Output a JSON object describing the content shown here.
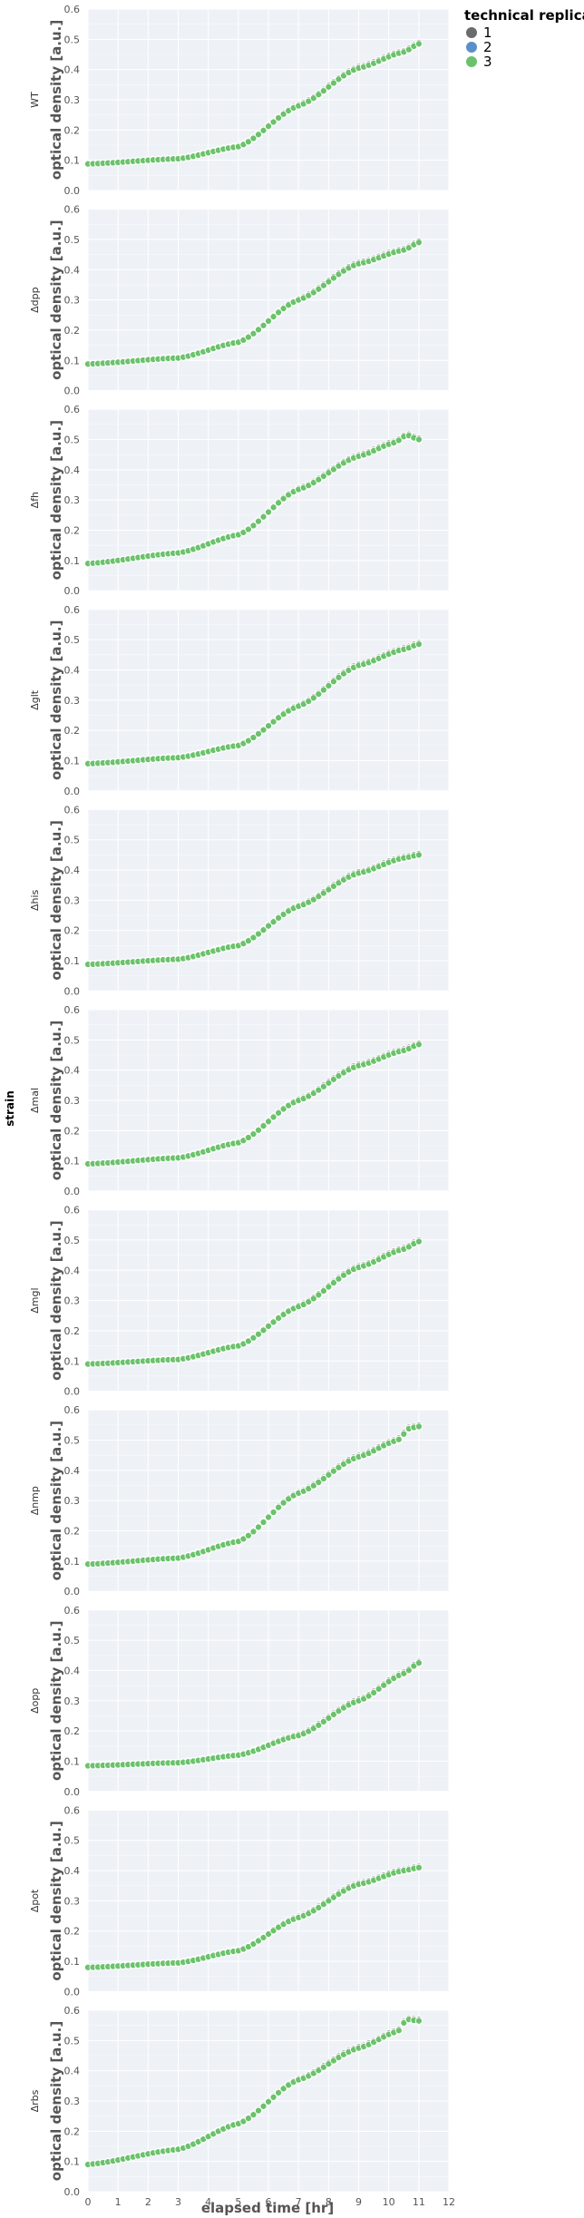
{
  "chart_data": {
    "type": "scatter",
    "xlabel": "elapsed time [hr]",
    "ylabel": "optical density [a.u.]",
    "facet_title": "strain",
    "xlim": [
      0,
      12
    ],
    "ylim": [
      0,
      0.6
    ],
    "xticks": [
      0,
      1,
      2,
      3,
      4,
      5,
      6,
      7,
      8,
      9,
      10,
      11,
      12
    ],
    "yticks": [
      0.0,
      0.1,
      0.2,
      0.3,
      0.4,
      0.5,
      0.6
    ],
    "grid": true,
    "legend": {
      "title": "technical replicate",
      "placement": "top-right",
      "entries": [
        {
          "label": "1",
          "color": "#6b6b6b"
        },
        {
          "label": "2",
          "color": "#5b8fc9"
        },
        {
          "label": "3",
          "color": "#6cc26c"
        }
      ]
    },
    "facets": [
      {
        "name": "WT",
        "tp": [
          [
            0,
            0.088
          ],
          [
            3,
            0.105
          ],
          [
            5,
            0.145
          ],
          [
            7,
            0.28
          ],
          [
            9,
            0.405
          ],
          [
            10.5,
            0.458
          ],
          [
            11,
            0.485
          ]
        ]
      },
      {
        "name": "Δdpp",
        "tp": [
          [
            0,
            0.088
          ],
          [
            3,
            0.108
          ],
          [
            5,
            0.16
          ],
          [
            7,
            0.3
          ],
          [
            9,
            0.42
          ],
          [
            10.5,
            0.465
          ],
          [
            11,
            0.49
          ]
        ]
      },
      {
        "name": "Δfh",
        "tp": [
          [
            0,
            0.09
          ],
          [
            3,
            0.125
          ],
          [
            5,
            0.185
          ],
          [
            7,
            0.335
          ],
          [
            9,
            0.445
          ],
          [
            10.2,
            0.49
          ],
          [
            10.6,
            0.515
          ],
          [
            11,
            0.5
          ]
        ]
      },
      {
        "name": "Δglt",
        "tp": [
          [
            0,
            0.09
          ],
          [
            3,
            0.11
          ],
          [
            5,
            0.15
          ],
          [
            7,
            0.28
          ],
          [
            9,
            0.415
          ],
          [
            10.5,
            0.468
          ],
          [
            11,
            0.485
          ]
        ]
      },
      {
        "name": "Δhis",
        "tp": [
          [
            0,
            0.088
          ],
          [
            3,
            0.105
          ],
          [
            5,
            0.15
          ],
          [
            7,
            0.28
          ],
          [
            9,
            0.39
          ],
          [
            10.5,
            0.44
          ],
          [
            11,
            0.45
          ]
        ]
      },
      {
        "name": "Δmal",
        "tp": [
          [
            0,
            0.09
          ],
          [
            3,
            0.11
          ],
          [
            5,
            0.16
          ],
          [
            7,
            0.3
          ],
          [
            9,
            0.415
          ],
          [
            10.5,
            0.465
          ],
          [
            11,
            0.485
          ]
        ]
      },
      {
        "name": "Δmgl",
        "tp": [
          [
            0,
            0.09
          ],
          [
            3,
            0.105
          ],
          [
            5,
            0.15
          ],
          [
            7,
            0.28
          ],
          [
            9,
            0.41
          ],
          [
            10.5,
            0.47
          ],
          [
            11,
            0.495
          ]
        ]
      },
      {
        "name": "Δnmp",
        "tp": [
          [
            0,
            0.09
          ],
          [
            3,
            0.11
          ],
          [
            5,
            0.165
          ],
          [
            7,
            0.325
          ],
          [
            9,
            0.445
          ],
          [
            10.3,
            0.5
          ],
          [
            10.7,
            0.54
          ],
          [
            11,
            0.545
          ]
        ]
      },
      {
        "name": "Δopp",
        "tp": [
          [
            0,
            0.085
          ],
          [
            3,
            0.095
          ],
          [
            5,
            0.12
          ],
          [
            7,
            0.185
          ],
          [
            9,
            0.3
          ],
          [
            10.5,
            0.39
          ],
          [
            11,
            0.425
          ]
        ]
      },
      {
        "name": "Δpot",
        "tp": [
          [
            0,
            0.08
          ],
          [
            3,
            0.095
          ],
          [
            5,
            0.135
          ],
          [
            7,
            0.245
          ],
          [
            9,
            0.355
          ],
          [
            10.5,
            0.4
          ],
          [
            11,
            0.41
          ]
        ]
      },
      {
        "name": "Δrbs",
        "tp": [
          [
            0,
            0.09
          ],
          [
            3,
            0.14
          ],
          [
            5,
            0.225
          ],
          [
            7,
            0.37
          ],
          [
            9,
            0.475
          ],
          [
            10.3,
            0.53
          ],
          [
            10.6,
            0.57
          ],
          [
            11,
            0.565
          ]
        ]
      }
    ],
    "sampling": {
      "step_hr": 0.1667,
      "t_max_hr": 11.1
    }
  }
}
